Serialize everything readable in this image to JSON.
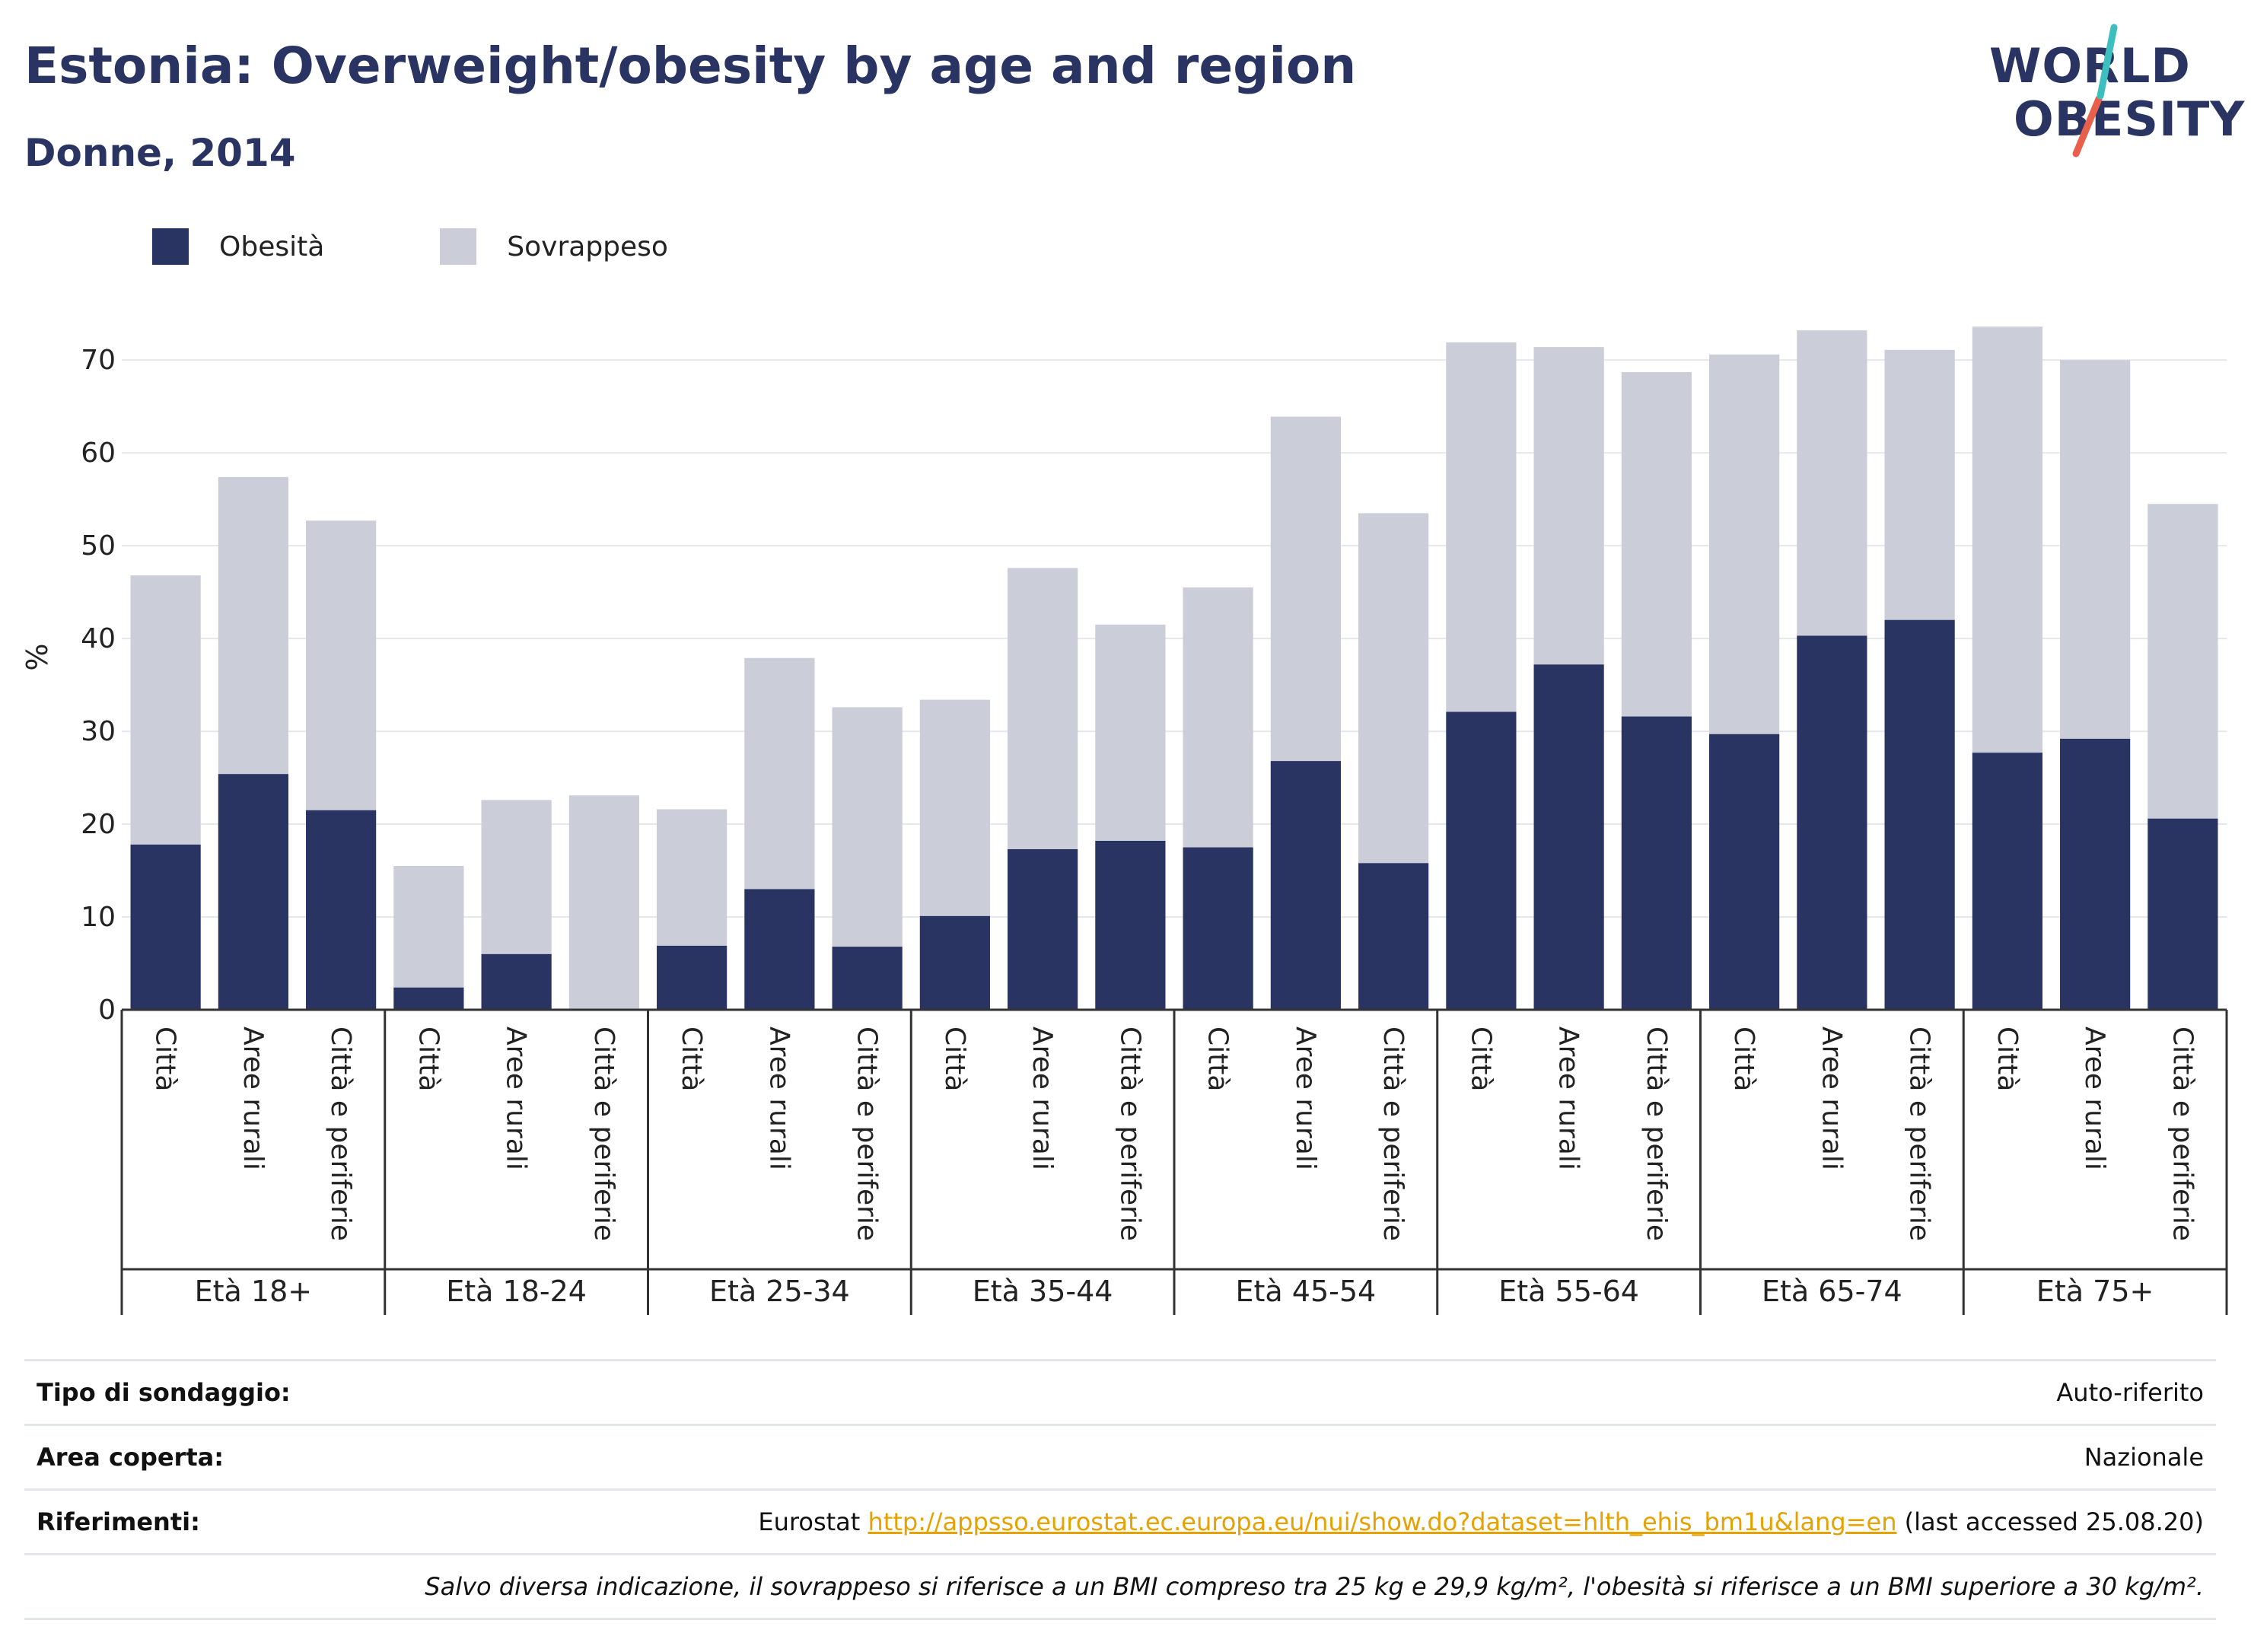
{
  "header": {
    "title": "Estonia: Overweight/obesity by age and region",
    "subtitle": "Donne, 2014"
  },
  "logo": {
    "line1": "WORLD",
    "line2": "OBESITY",
    "colors": {
      "text": "#293462",
      "slash_red": "#e8604c",
      "slash_teal": "#3dbfbf"
    }
  },
  "legend": [
    {
      "label": "Obesità",
      "color": "#293462"
    },
    {
      "label": "Sovrappeso",
      "color": "#cbcdd9"
    }
  ],
  "chart_data": {
    "type": "bar",
    "stacked": true,
    "ylabel": "%",
    "ylim": [
      0,
      76
    ],
    "yticks": [
      0,
      10,
      20,
      30,
      40,
      50,
      60,
      70
    ],
    "grid": true,
    "groups": [
      "Età 18+",
      "Età 18-24",
      "Età 25-34",
      "Età 35-44",
      "Età 45-54",
      "Età 55-64",
      "Età 65-74",
      "Età 75+"
    ],
    "subcategories": [
      "Città",
      "Aree rurali",
      "Città e periferie"
    ],
    "series": [
      {
        "name": "Obesità",
        "color": "#293462",
        "values": [
          17.8,
          25.4,
          21.5,
          2.4,
          6.0,
          0.0,
          6.9,
          13.0,
          6.8,
          10.1,
          17.3,
          18.2,
          17.5,
          26.8,
          15.8,
          32.1,
          37.2,
          31.6,
          29.7,
          40.3,
          42.0,
          27.7,
          29.2,
          20.6
        ]
      },
      {
        "name": "Sovrappeso",
        "color": "#cbcdd9",
        "values": [
          29.0,
          32.0,
          31.2,
          13.1,
          16.6,
          23.1,
          14.7,
          24.9,
          25.8,
          23.3,
          30.3,
          23.3,
          28.0,
          37.1,
          37.7,
          39.8,
          34.2,
          37.1,
          40.9,
          32.9,
          29.1,
          45.9,
          40.8,
          33.9
        ]
      }
    ]
  },
  "info": {
    "survey_type_label": "Tipo di sondaggio:",
    "survey_type_value": "Auto-riferito",
    "coverage_label": "Area coperta:",
    "coverage_value": "Nazionale",
    "references_label": "Riferimenti:",
    "references_prefix": "Eurostat ",
    "references_link": "http://appsso.eurostat.ec.europa.eu/nui/show.do?dataset=hlth_ehis_bm1u&lang=en",
    "references_suffix": " (last accessed 25.08.20)",
    "note": "Salvo diversa indicazione, il sovrappeso si riferisce a un BMI compreso tra 25 kg e 29,9 kg/m², l'obesità si riferisce a un BMI superiore a 30 kg/m²."
  }
}
